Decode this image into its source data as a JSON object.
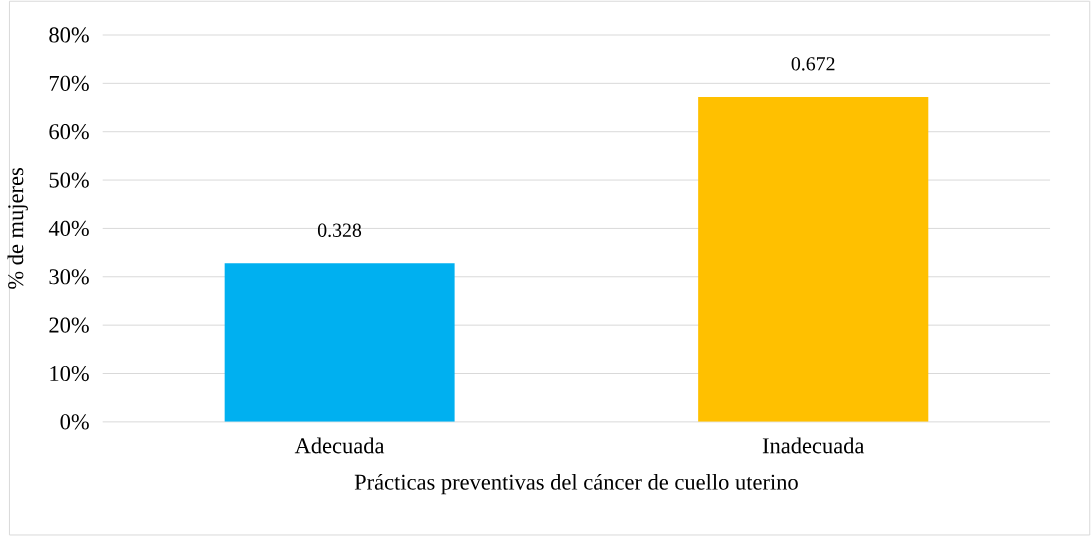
{
  "chart_data": {
    "type": "bar",
    "categories": [
      "Adecuada",
      "Inadecuada"
    ],
    "values": [
      0.328,
      0.672
    ],
    "colors": [
      "#00b0f0",
      "#ffc000"
    ],
    "xlabel": "Prácticas preventivas del cáncer de cuello uterino",
    "ylabel": "% de mujeres",
    "ylim": [
      0,
      0.8
    ],
    "yticks": [
      {
        "value": 0,
        "label": "0%"
      },
      {
        "value": 0.1,
        "label": "10%"
      },
      {
        "value": 0.2,
        "label": "20%"
      },
      {
        "value": 0.3,
        "label": "30%"
      },
      {
        "value": 0.4,
        "label": "40%"
      },
      {
        "value": 0.5,
        "label": "50%"
      },
      {
        "value": 0.6,
        "label": "60%"
      },
      {
        "value": 0.7,
        "label": "70%"
      },
      {
        "value": 0.8,
        "label": "80%"
      }
    ],
    "grid": "y",
    "data_labels": true
  }
}
